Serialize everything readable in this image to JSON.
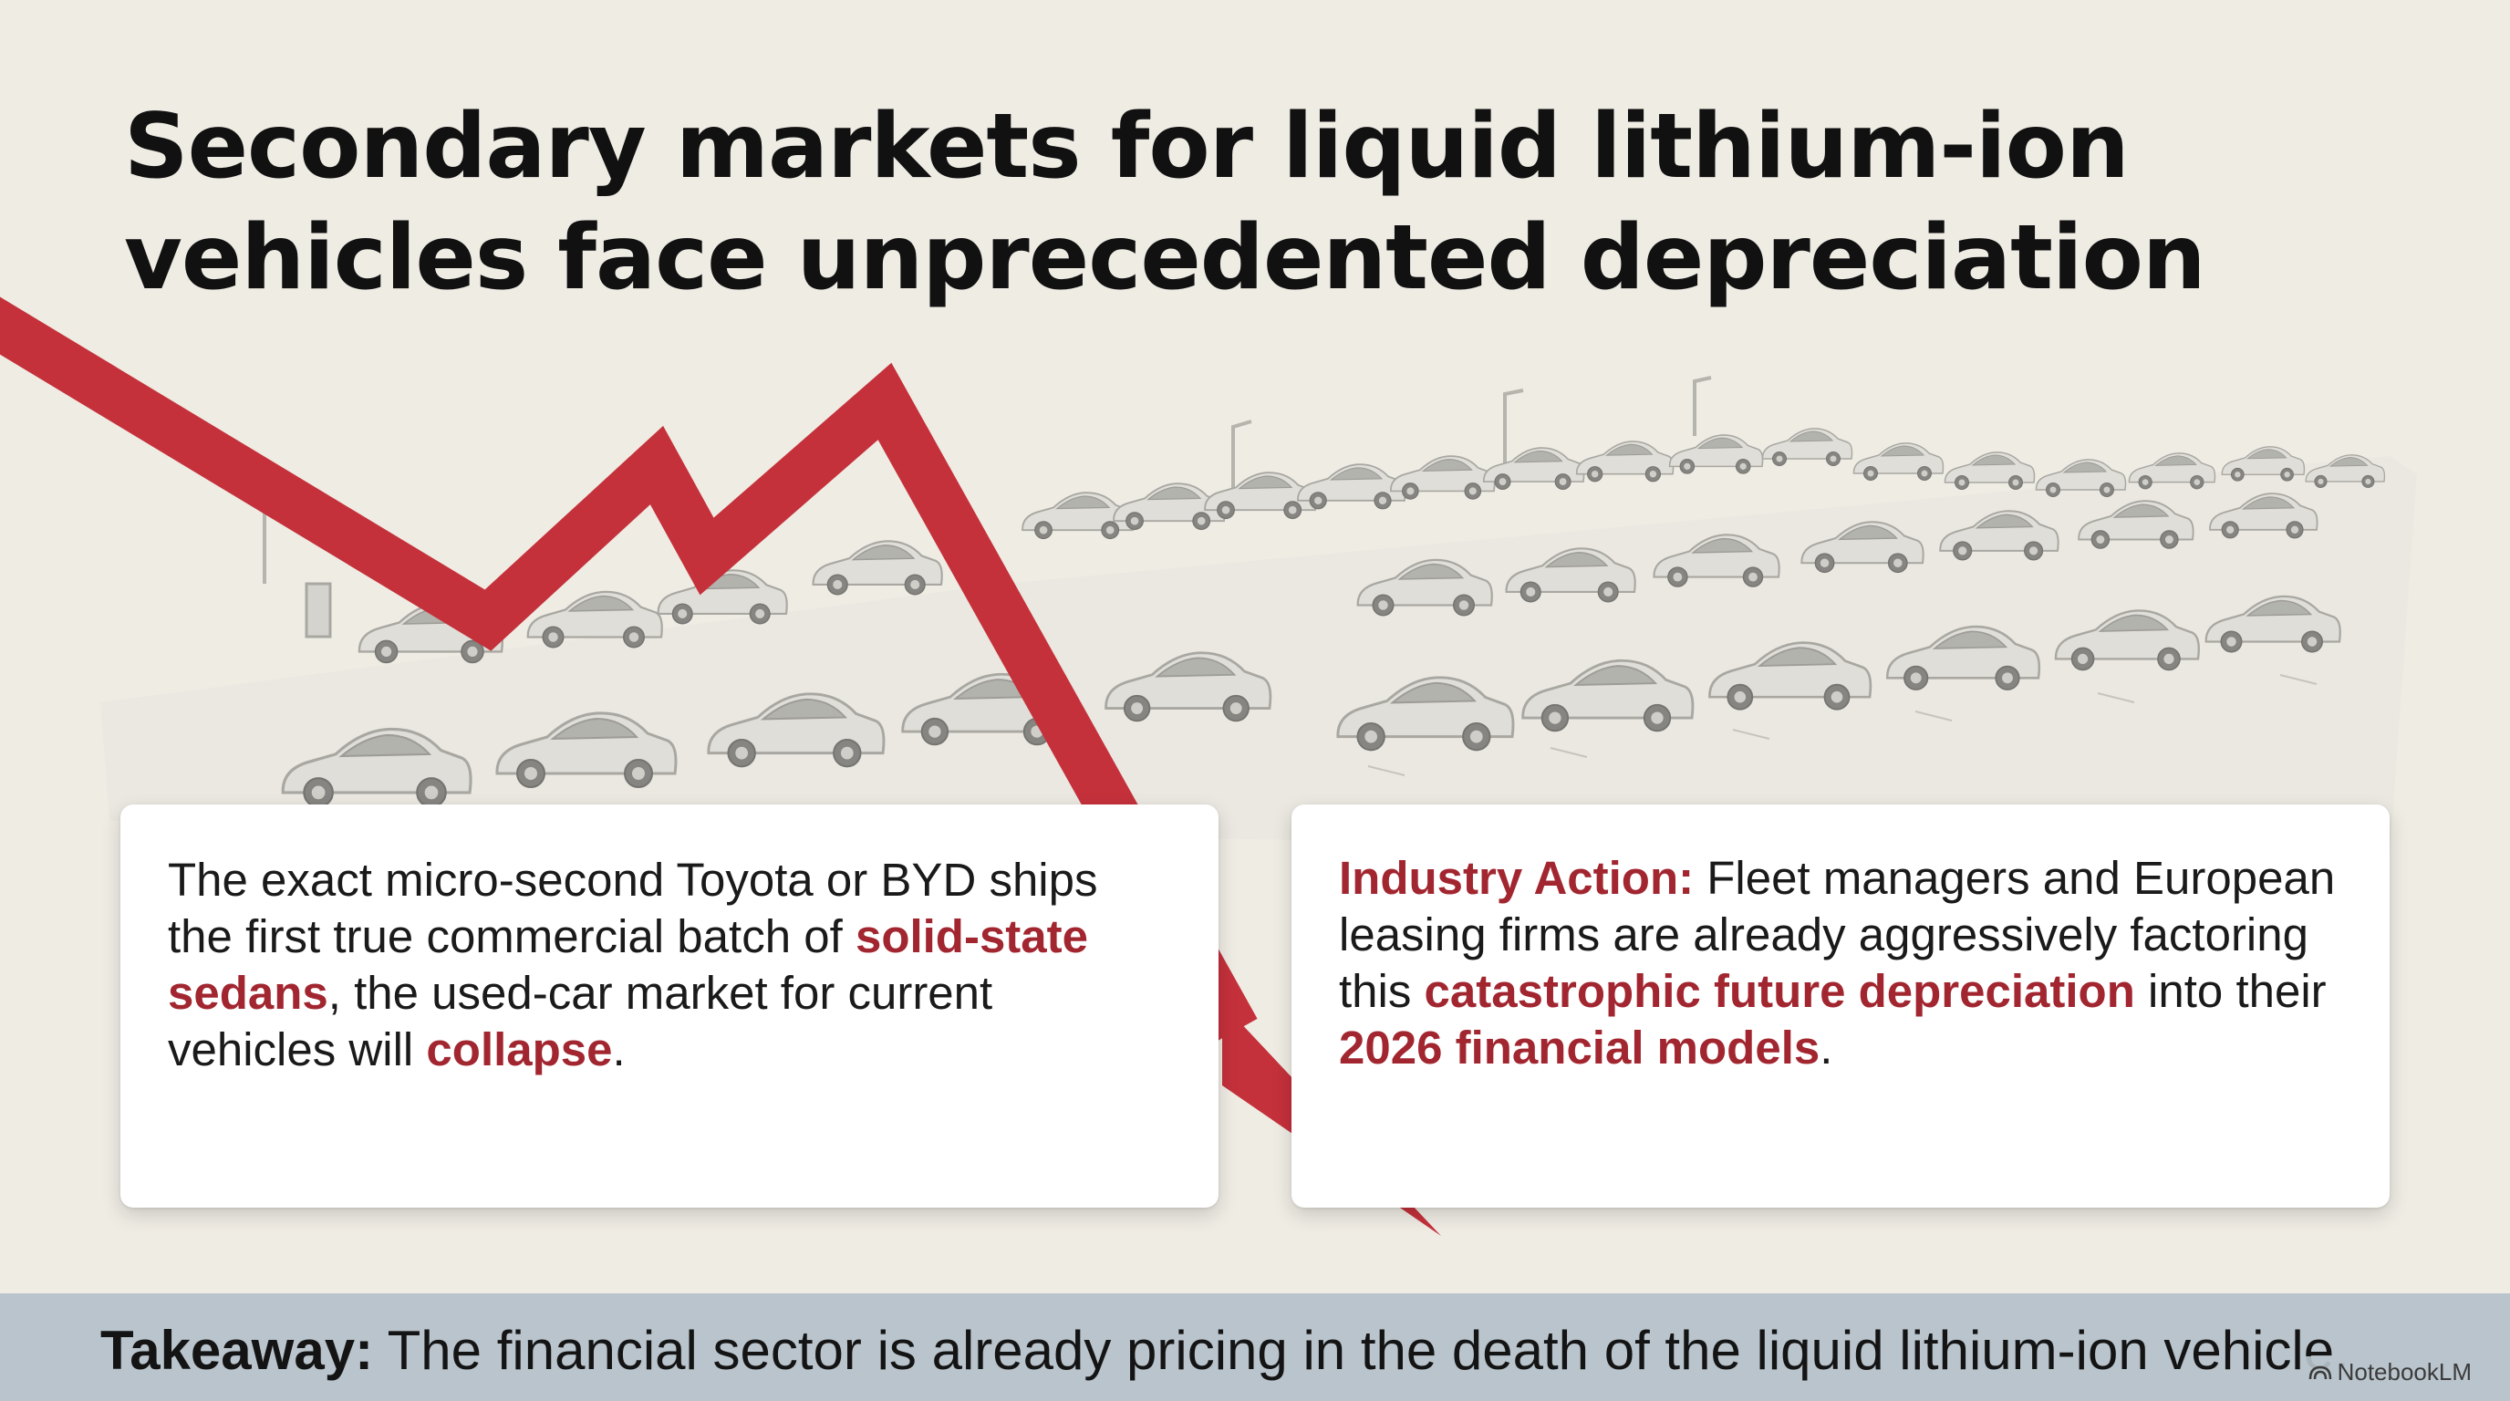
{
  "title": "Secondary markets for liquid lithium-ion vehicles face unprecedented depreciation",
  "card_left": {
    "part1": "The exact micro-second Toyota or BYD ships the first true commercial batch of ",
    "highlight1": "solid-state sedans",
    "part2": ", the used-car market for current vehicles will ",
    "highlight2": "collapse",
    "part3": "."
  },
  "card_right": {
    "label": "Industry Action:",
    "part1": " Fleet managers and European leasing firms are already aggressively factoring this ",
    "highlight1": "catastrophic future depreciation",
    "part2": " into their ",
    "highlight2": "2026 financial models",
    "part3": "."
  },
  "takeaway": {
    "label": "Takeaway:",
    "text": " The financial sector is already pricing in the death of the liquid lithium-ion vehicle."
  },
  "brand": "NotebookLM",
  "colors": {
    "background": "#efece4",
    "trend_red": "#c4313b",
    "highlight": "#a22630",
    "takeaway_bar": "#b9c4cc"
  }
}
